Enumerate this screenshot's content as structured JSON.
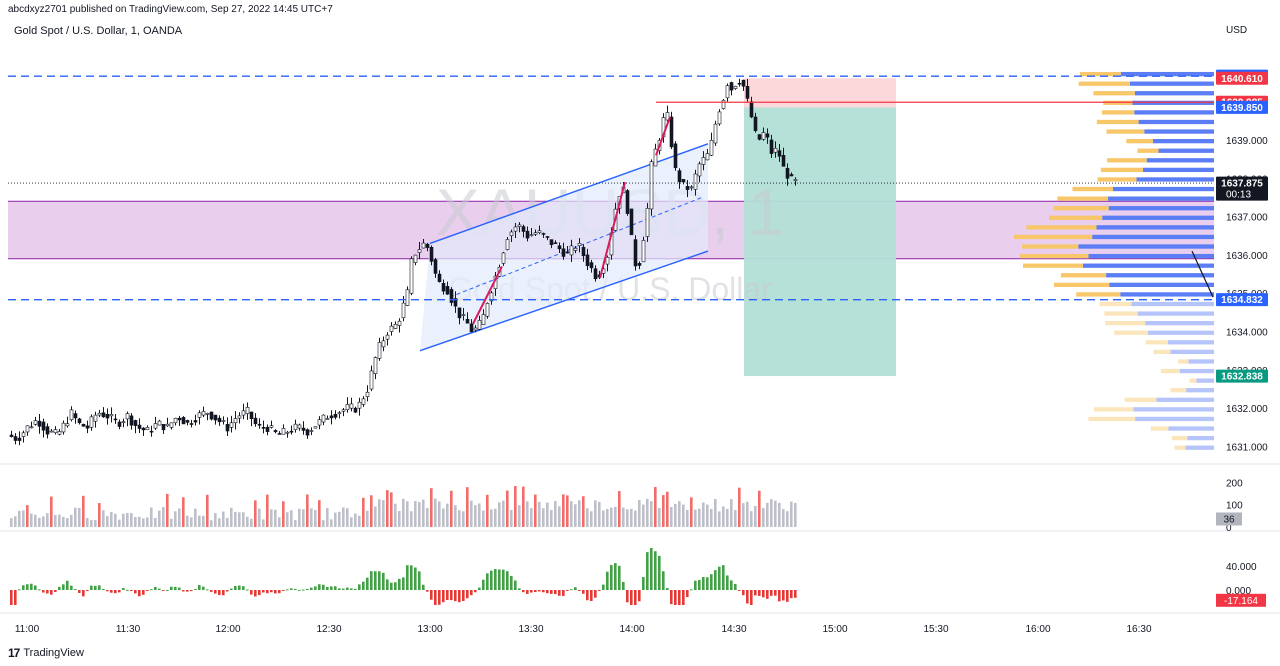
{
  "header": {
    "publisher": "abcdxyz2701 published on TradingView.com, Sep 27, 2022 14:45 UTC+7",
    "symbol_line": "Gold Spot / U.S. Dollar, 1, OANDA",
    "currency": "USD",
    "watermark_symbol": "XAUUSD, 1",
    "watermark_name": "Gold Spot / U.S. Dollar"
  },
  "footer": {
    "brand": "TradingView",
    "logo_glyph": "17"
  },
  "colors": {
    "up": "#26a69a",
    "down": "#ef5350",
    "candle_body": "#131722",
    "blue": "#2962ff",
    "purple_zone": "#e1bee7",
    "sl_zone": "#fcd4d6",
    "tp_zone": "#b2dfd6",
    "vp_blue": "#5b7df5",
    "vp_yellow": "#f7c76a",
    "vol_gray": "#b2b5be",
    "osc_up": "#43a047",
    "osc_down": "#e53935"
  },
  "chart_data": [
    {
      "type": "candlestick",
      "title": "Gold Spot / U.S. Dollar, 1, OANDA",
      "x_tick_labels": [
        "11:00",
        "11:30",
        "12:00",
        "12:30",
        "13:00",
        "13:30",
        "14:00",
        "14:30",
        "15:00",
        "15:30",
        "16:00",
        "16:30"
      ],
      "y_tick_values": [
        1631.0,
        1632.0,
        1633.0,
        1634.0,
        1635.0,
        1636.0,
        1637.0,
        1638.0,
        1639.0
      ],
      "y_tick_labels": [
        "1631.000",
        "1632.000",
        "1633.000",
        "1634.000",
        "1635.000",
        "1636.000",
        "1637.000",
        "1638.000",
        "1639.000"
      ],
      "ylim": [
        1630.7,
        1641.4
      ],
      "price_path": [
        [
          0,
          1631.3
        ],
        [
          10,
          1631.2
        ],
        [
          20,
          1631.5
        ],
        [
          30,
          1631.7
        ],
        [
          40,
          1631.4
        ],
        [
          50,
          1631.3
        ],
        [
          60,
          1631.7
        ],
        [
          65,
          1631.9
        ],
        [
          70,
          1631.6
        ],
        [
          80,
          1631.5
        ],
        [
          90,
          1631.9
        ],
        [
          100,
          1631.8
        ],
        [
          110,
          1631.6
        ],
        [
          120,
          1631.8
        ],
        [
          130,
          1631.5
        ],
        [
          140,
          1631.4
        ],
        [
          150,
          1631.6
        ],
        [
          160,
          1631.5
        ],
        [
          170,
          1631.8
        ],
        [
          180,
          1631.6
        ],
        [
          190,
          1631.8
        ],
        [
          200,
          1631.9
        ],
        [
          210,
          1631.7
        ],
        [
          220,
          1631.5
        ],
        [
          230,
          1631.8
        ],
        [
          240,
          1631.9
        ],
        [
          250,
          1631.5
        ],
        [
          260,
          1631.5
        ],
        [
          270,
          1631.3
        ],
        [
          280,
          1631.4
        ],
        [
          290,
          1631.5
        ],
        [
          300,
          1631.4
        ],
        [
          310,
          1631.6
        ],
        [
          320,
          1631.8
        ],
        [
          330,
          1631.9
        ],
        [
          340,
          1632.0
        ],
        [
          350,
          1632.0
        ],
        [
          360,
          1632.5
        ],
        [
          370,
          1633.5
        ],
        [
          380,
          1634.0
        ],
        [
          390,
          1634.2
        ],
        [
          400,
          1635.0
        ],
        [
          405,
          1636.0
        ],
        [
          410,
          1636.1
        ],
        [
          415,
          1636.3
        ],
        [
          420,
          1636.2
        ],
        [
          425,
          1635.8
        ],
        [
          430,
          1635.3
        ],
        [
          440,
          1635.1
        ],
        [
          450,
          1634.5
        ],
        [
          460,
          1634.2
        ],
        [
          465,
          1634.0
        ],
        [
          470,
          1634.1
        ],
        [
          475,
          1634.3
        ],
        [
          480,
          1634.8
        ],
        [
          490,
          1635.6
        ],
        [
          500,
          1636.5
        ],
        [
          510,
          1636.8
        ],
        [
          520,
          1636.5
        ],
        [
          530,
          1636.6
        ],
        [
          540,
          1636.4
        ],
        [
          550,
          1636.2
        ],
        [
          560,
          1636.0
        ],
        [
          570,
          1636.3
        ],
        [
          580,
          1635.8
        ],
        [
          590,
          1635.4
        ],
        [
          600,
          1636.0
        ],
        [
          605,
          1636.8
        ],
        [
          610,
          1637.5
        ],
        [
          615,
          1637.8
        ],
        [
          620,
          1637.2
        ],
        [
          625,
          1636.2
        ],
        [
          630,
          1635.5
        ],
        [
          635,
          1636.3
        ],
        [
          640,
          1637.2
        ],
        [
          645,
          1638.6
        ],
        [
          650,
          1638.8
        ],
        [
          655,
          1639.5
        ],
        [
          660,
          1639.6
        ],
        [
          668,
          1638.2
        ],
        [
          675,
          1637.8
        ],
        [
          685,
          1637.7
        ],
        [
          690,
          1638.3
        ],
        [
          700,
          1638.6
        ],
        [
          705,
          1639.0
        ],
        [
          710,
          1639.7
        ],
        [
          715,
          1640.0
        ],
        [
          720,
          1640.5
        ],
        [
          725,
          1640.3
        ],
        [
          730,
          1640.6
        ],
        [
          735,
          1640.5
        ],
        [
          740,
          1640.0
        ],
        [
          745,
          1639.5
        ],
        [
          750,
          1638.9
        ],
        [
          755,
          1639.2
        ],
        [
          760,
          1639.0
        ],
        [
          765,
          1638.6
        ],
        [
          770,
          1638.8
        ],
        [
          775,
          1638.3
        ],
        [
          780,
          1638.1
        ],
        [
          785,
          1637.9
        ]
      ],
      "levels": {
        "dashed_top": 1640.665,
        "dashed_bottom": 1634.832,
        "red_line": 1639.985,
        "entry": 1639.85,
        "last_price": 1637.875,
        "take_profit": 1632.838
      },
      "zones": {
        "purple": {
          "from": 1635.9,
          "to": 1637.4
        },
        "stop_loss": {
          "from": 1639.85,
          "to": 1640.61
        },
        "take_profit": {
          "from": 1632.838,
          "to": 1639.85
        }
      },
      "channel": {
        "upper": [
          [
            420,
            1636.3
          ],
          [
            698,
            1638.9
          ]
        ],
        "lower": [
          [
            410,
            1633.5
          ],
          [
            698,
            1636.1
          ]
        ],
        "mid": [
          [
            440,
            1634.9
          ],
          [
            692,
            1637.5
          ]
        ]
      },
      "price_labels": [
        {
          "text": "1640.665",
          "value": 1640.665,
          "color": "#2962ff"
        },
        {
          "text": "1640.610",
          "value": 1640.61,
          "color": "#f23645"
        },
        {
          "text": "1639.985",
          "value": 1639.985,
          "color": "#f23645"
        },
        {
          "text": "1639.850",
          "value": 1639.85,
          "color": "#2962ff"
        },
        {
          "text": "1637.875",
          "value": 1637.875,
          "color": "#131722",
          "sub": "00:13"
        },
        {
          "text": "1634.832",
          "value": 1634.832,
          "color": "#2962ff"
        },
        {
          "text": "1632.838",
          "value": 1632.838,
          "color": "#089981"
        }
      ]
    },
    {
      "type": "bar",
      "title": "Volume",
      "y_tick_values": [
        0,
        100,
        200
      ],
      "y_tick_labels": [
        "0",
        "100",
        "200"
      ],
      "ylim": [
        0,
        220
      ],
      "last_value_label": "36"
    },
    {
      "type": "bar",
      "title": "Oscillator",
      "y_tick_values": [
        0,
        40
      ],
      "y_tick_labels": [
        "0.000",
        "40.000"
      ],
      "ylim": [
        -30,
        75
      ],
      "last_value_label": "-17.164"
    }
  ]
}
